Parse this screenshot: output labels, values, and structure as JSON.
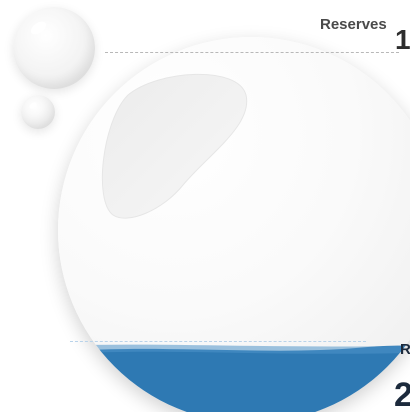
{
  "labels": {
    "top_label": "Reserves",
    "top_value": "1",
    "bottom_label": "R",
    "bottom_value": "2"
  },
  "gauge": {
    "fill_fraction": 0.2
  },
  "colors": {
    "water": "#2e79b3",
    "water_surface": "#4f93c8",
    "text_dark": "#1c2a3c",
    "text_gray": "#4a4a4a",
    "dash": "#b8b8b8"
  },
  "icons": [
    "bubble-large-icon",
    "bubble-small-icon",
    "gauge-gloss-icon"
  ]
}
